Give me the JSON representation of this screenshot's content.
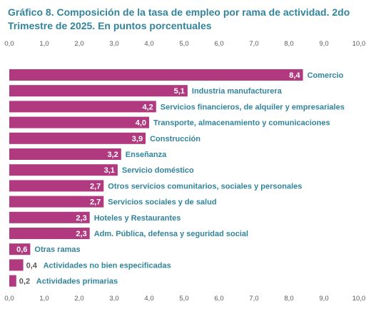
{
  "chart_data": {
    "type": "bar",
    "orientation": "horizontal",
    "title": "Gráfico 8. Composición de la tasa de empleo por rama de actividad. 2do Trimestre de 2025. En puntos porcentuales",
    "categories": [
      "Comercio",
      "Industria manufacturera",
      "Servicios financieros, de alquiler y empresariales",
      "Transporte, almacenamiento y comunicaciones",
      "Construcción",
      "Enseñanza",
      "Servicio doméstico",
      "Otros servicios comunitarios, sociales  y personales",
      "Servicios sociales y de salud",
      "Hoteles y Restaurantes",
      "Adm. Pública, defensa y seguridad social",
      "Otras ramas",
      "Actividades no bien especificadas",
      "Actividades primarias"
    ],
    "values": [
      8.4,
      5.1,
      4.2,
      4.0,
      3.9,
      3.2,
      3.1,
      2.7,
      2.7,
      2.3,
      2.3,
      0.6,
      0.4,
      0.2
    ],
    "value_labels": [
      "8,4",
      "5,1",
      "4,2",
      "4,0",
      "3,9",
      "3,2",
      "3,1",
      "2,7",
      "2,7",
      "2,3",
      "2,3",
      "0,6",
      "0,4",
      "0,2"
    ],
    "xlim": [
      0,
      10
    ],
    "ticks": [
      "0,0",
      "1,0",
      "2,0",
      "3,0",
      "4,0",
      "5,0",
      "6,0",
      "7,0",
      "8,0",
      "9,0",
      "10,0"
    ],
    "tick_axes": [
      "top",
      "bottom"
    ],
    "grid": false,
    "legend": "none",
    "bar_color": "#b0397f",
    "label_color": "#31849b"
  }
}
